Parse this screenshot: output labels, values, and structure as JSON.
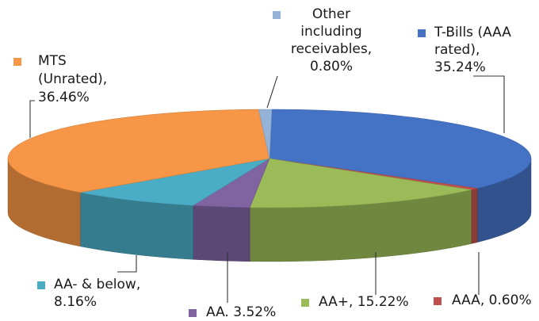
{
  "chart_data": {
    "type": "pie",
    "title": "",
    "legend": "none",
    "slices": [
      {
        "name": "T-Bills (AAA rated)",
        "value": 35.24,
        "color": "#4472C4",
        "label_lines": [
          "T-Bills (AAA",
          "rated),",
          "35.24%"
        ]
      },
      {
        "name": "AAA",
        "value": 0.6,
        "color": "#C0504D",
        "label_lines": [
          "AAA, 0.60%"
        ]
      },
      {
        "name": "AA+",
        "value": 15.22,
        "color": "#9BBB59",
        "label_lines": [
          "AA+, 15.22%"
        ]
      },
      {
        "name": "AA",
        "value": 3.52,
        "color": "#8064A2",
        "label_lines": [
          "AA. 3.52%"
        ]
      },
      {
        "name": "AA- & below",
        "value": 8.16,
        "color": "#4BACC6",
        "label_lines": [
          "AA- & below,",
          "8.16%"
        ]
      },
      {
        "name": "MTS (Unrated)",
        "value": 36.46,
        "color": "#F79646",
        "label_lines": [
          "MTS",
          "(Unrated),",
          "36.46%"
        ]
      },
      {
        "name": "Other including receivables",
        "value": 0.8,
        "color": "#95B3D7",
        "label_lines": [
          "Other",
          "including",
          "receivables,",
          "0.80%"
        ]
      }
    ]
  }
}
